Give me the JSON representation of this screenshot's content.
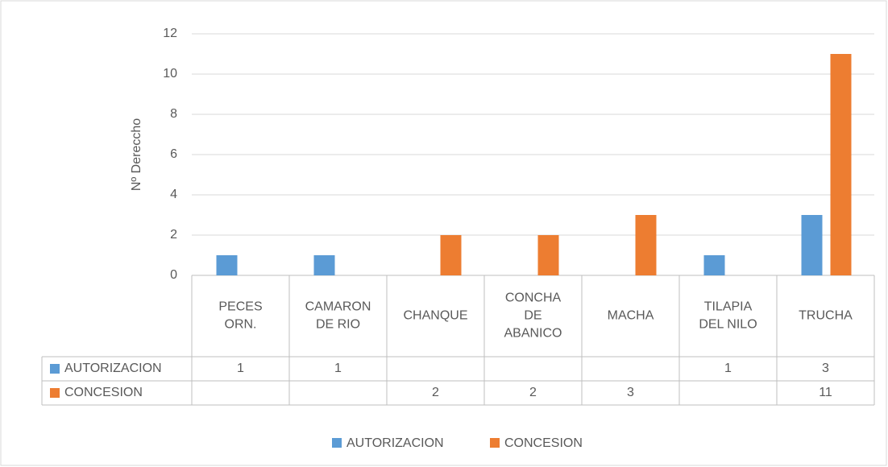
{
  "chart_data": {
    "type": "bar",
    "y_label": "Nº Dereccho",
    "categories": [
      "PECES ORN.",
      "CAMARON DE RIO",
      "CHANQUE",
      "CONCHA DE ABANICO",
      "MACHA",
      "TILAPIA DEL NILO",
      "TRUCHA"
    ],
    "series": [
      {
        "name": "AUTORIZACION",
        "color": "#5b9bd5",
        "values": [
          1,
          1,
          null,
          null,
          null,
          1,
          3
        ]
      },
      {
        "name": "CONCESION",
        "color": "#ed7d31",
        "values": [
          null,
          null,
          2,
          2,
          3,
          null,
          11
        ]
      }
    ],
    "ylim": [
      0,
      12
    ],
    "yticks": [
      0,
      2,
      4,
      6,
      8,
      10,
      12
    ],
    "grid": true,
    "legend": "bottom",
    "data_table": true
  }
}
